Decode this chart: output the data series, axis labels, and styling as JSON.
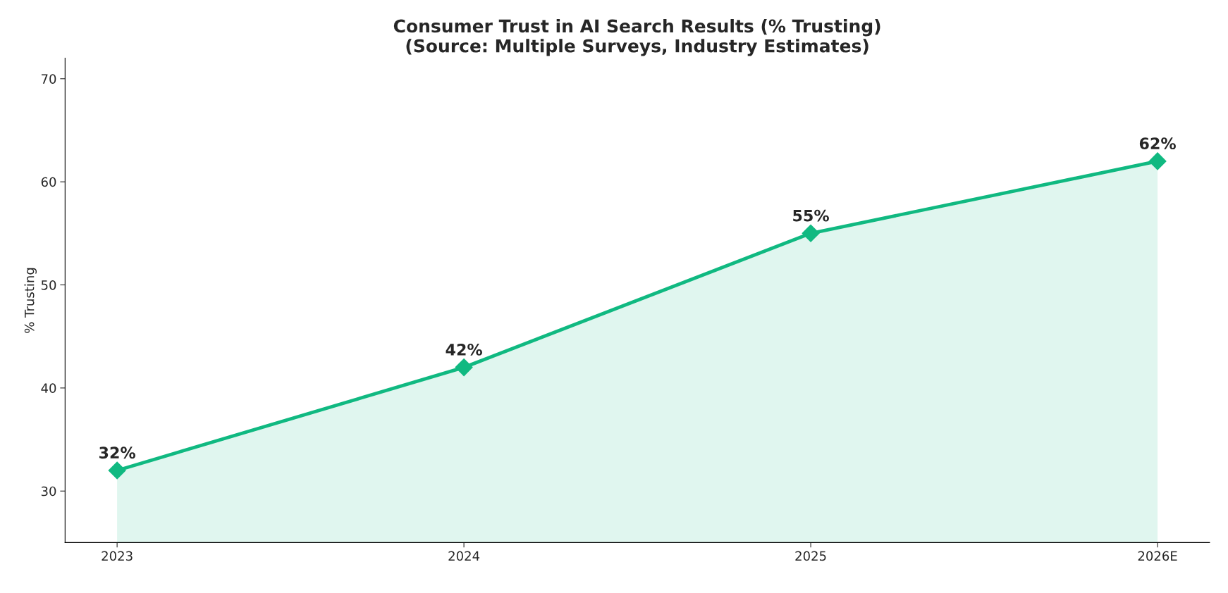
{
  "chart_data": {
    "type": "area",
    "title": "Consumer Trust in AI Search Results (% Trusting)\n(Source: Multiple Surveys, Industry Estimates)",
    "ylabel": "% Trusting",
    "categories": [
      "2023",
      "2024",
      "2025",
      "2026E"
    ],
    "series": [
      {
        "color": "#10b981",
        "values": [
          32,
          42,
          55,
          62
        ],
        "value_labels": [
          "32%",
          "42%",
          "55%",
          "62%"
        ]
      }
    ],
    "ylim": [
      25,
      72
    ],
    "yticks": [
      30,
      40,
      50,
      60,
      70
    ],
    "grid": false,
    "marker": "diamond",
    "line_style": "solid"
  }
}
